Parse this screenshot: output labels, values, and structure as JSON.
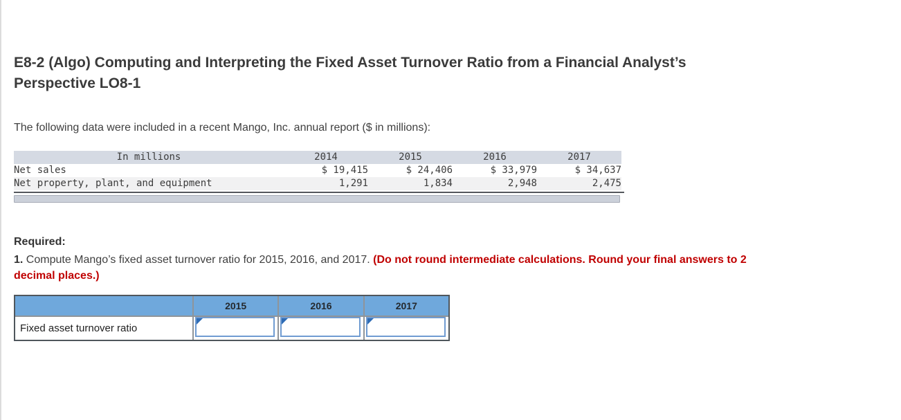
{
  "colors": {
    "answer_header_bg": "#6fa8dc",
    "data_header_bg": "#d5dae3",
    "emphasis_red": "#c00000",
    "input_border_blue": "#6f9bd1",
    "answer_marker_blue": "#2e6cb5"
  },
  "header": {
    "title_line1": "E8-2 (Algo) Computing and Interpreting the Fixed Asset Turnover Ratio from a Financial Analyst’s",
    "title_line2": "Perspective LO8-1"
  },
  "intro": "The following data were included in a recent Mango, Inc. annual report ($ in millions):",
  "data_table": {
    "headers": [
      "In millions",
      "2014",
      "2015",
      "2016",
      "2017"
    ],
    "rows": [
      {
        "label": "Net sales",
        "values": [
          "$ 19,415",
          "$ 24,406",
          "$ 33,979",
          "$ 34,637"
        ]
      },
      {
        "label": "Net property, plant, and equipment",
        "values": [
          "1,291",
          "1,834",
          "2,948",
          "2,475"
        ]
      }
    ]
  },
  "required": {
    "heading": "Required:",
    "item_number": "1.",
    "item_text": "Compute Mango’s fixed asset turnover ratio for 2015, 2016, and 2017.",
    "item_emphasis": "(Do not round intermediate calculations. Round your final answers to 2 decimal places.)"
  },
  "answer_table": {
    "columns": [
      "2015",
      "2016",
      "2017"
    ],
    "row_label": "Fixed asset turnover ratio",
    "inputs": [
      {
        "year": "2015",
        "value": "",
        "placeholder": ""
      },
      {
        "year": "2016",
        "value": "",
        "placeholder": ""
      },
      {
        "year": "2017",
        "value": "",
        "placeholder": ""
      }
    ]
  }
}
